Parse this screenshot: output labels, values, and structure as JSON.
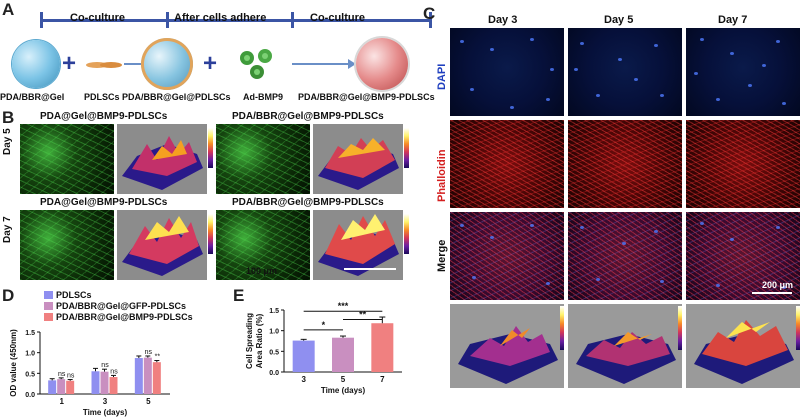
{
  "panels": {
    "A": "A",
    "B": "B",
    "C": "C",
    "D": "D",
    "E": "E"
  },
  "panelA": {
    "stage1": "Co-culture",
    "stage2": "After cells adhere",
    "stage3": "Co-culture",
    "plus1": "+",
    "plus2": "+",
    "item1": "PDA/BBR@Gel",
    "item2": "PDLSCs",
    "item3": "PDA/BBR@Gel@PDLSCs",
    "item4": "Ad-BMP9",
    "item5": "PDA/BBR@Gel@BMP9-PDLSCs"
  },
  "panelB": {
    "title_tl": "PDA@Gel@BMP9-PDLSCs",
    "title_tr": "PDA/BBR@Gel@BMP9-PDLSCs",
    "title_bl": "PDA@Gel@BMP9-PDLSCs",
    "title_br": "PDA/BBR@Gel@BMP9-PDLSCs",
    "row1": "Day 5",
    "row2": "Day 7",
    "scale": "100 μm"
  },
  "panelC": {
    "col1": "Day 3",
    "col2": "Day 5",
    "col3": "Day 7",
    "row1": "DAPI",
    "row2": "Phalloidin",
    "row3": "Merge",
    "scale": "200 μm",
    "colors": {
      "dapi": "#1f3fbf",
      "phalloidin": "#d42020"
    }
  },
  "chart_data": [
    {
      "type": "bar",
      "panel": "D",
      "ylabel": "OD value (450nm)",
      "xlabel": "Time (days)",
      "categories": [
        "1",
        "3",
        "5"
      ],
      "ylim": [
        0,
        1.5
      ],
      "yticks": [
        "0.0",
        "0.5",
        "1.0",
        "1.5"
      ],
      "series": [
        {
          "name": "PDLSCs",
          "color": "#8f8ff0",
          "values": [
            0.33,
            0.55,
            0.87
          ],
          "errors": [
            0.04,
            0.07,
            0.05
          ]
        },
        {
          "name": "PDA/BBR@Gel@GFP-PDLSCs",
          "color": "#c98fc0",
          "values": [
            0.36,
            0.54,
            0.88
          ],
          "errors": [
            0.03,
            0.06,
            0.04
          ]
        },
        {
          "name": "PDA/BBR@Gel@BMP9-PDLSCs",
          "color": "#f08080",
          "values": [
            0.32,
            0.41,
            0.77
          ],
          "errors": [
            0.03,
            0.04,
            0.04
          ]
        }
      ],
      "annotations": [
        {
          "category": "1",
          "series": 1,
          "text": "ns"
        },
        {
          "category": "1",
          "series": 2,
          "text": "ns"
        },
        {
          "category": "3",
          "series": 1,
          "text": "ns"
        },
        {
          "category": "3",
          "series": 2,
          "text": "ns"
        },
        {
          "category": "5",
          "series": 1,
          "text": "ns"
        },
        {
          "category": "5",
          "series": 2,
          "text": "**"
        }
      ]
    },
    {
      "type": "bar",
      "panel": "E",
      "ylabel": "Cell Spreading\nArea Ratio (%)",
      "xlabel": "Time (days)",
      "categories": [
        "3",
        "5",
        "7"
      ],
      "ylim": [
        0.0,
        1.5
      ],
      "yticks": [
        "0.0",
        "0.5",
        "1.0",
        "1.5"
      ],
      "values": [
        0.76,
        0.83,
        1.18
      ],
      "errors": [
        0.03,
        0.04,
        0.15
      ],
      "colors": [
        "#8f8ff0",
        "#c98fc0",
        "#f08080"
      ],
      "significance": [
        {
          "from": "3",
          "to": "5",
          "text": "*"
        },
        {
          "from": "5",
          "to": "7",
          "text": "**"
        },
        {
          "from": "3",
          "to": "7",
          "text": "***"
        }
      ]
    }
  ]
}
